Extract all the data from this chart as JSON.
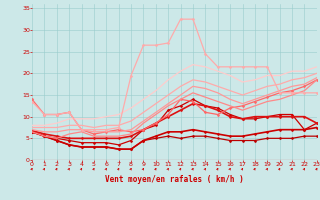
{
  "xlabel": "Vent moyen/en rafales ( km/h )",
  "bg_color": "#cce8e8",
  "grid_color": "#99cccc",
  "x_ticks": [
    0,
    1,
    2,
    3,
    4,
    5,
    6,
    7,
    8,
    9,
    10,
    11,
    12,
    13,
    14,
    15,
    16,
    17,
    18,
    19,
    20,
    21,
    22,
    23
  ],
  "y_ticks": [
    0,
    5,
    10,
    15,
    20,
    25,
    30,
    35
  ],
  "xlim": [
    0,
    23
  ],
  "ylim": [
    0,
    36
  ],
  "lines": [
    {
      "y": [
        6.5,
        5.5,
        4.5,
        3.5,
        3.0,
        3.0,
        3.0,
        2.5,
        2.5,
        4.5,
        5.0,
        5.5,
        5.0,
        5.5,
        5.5,
        5.0,
        4.5,
        4.5,
        4.5,
        5.0,
        5.0,
        5.0,
        5.5,
        5.5
      ],
      "color": "#bb0000",
      "lw": 0.9,
      "marker": "D",
      "ms": 1.5
    },
    {
      "y": [
        6.5,
        5.5,
        4.5,
        3.5,
        3.0,
        3.0,
        3.0,
        2.5,
        2.5,
        4.5,
        5.5,
        6.5,
        6.5,
        7.0,
        6.5,
        6.0,
        5.5,
        5.5,
        6.0,
        6.5,
        7.0,
        7.0,
        7.0,
        7.5
      ],
      "color": "#cc0000",
      "lw": 1.2,
      "marker": "D",
      "ms": 1.5
    },
    {
      "y": [
        6.5,
        5.5,
        5.0,
        4.5,
        4.0,
        4.0,
        4.0,
        3.5,
        4.5,
        7.0,
        8.0,
        11.5,
        12.5,
        14.0,
        12.5,
        12.0,
        10.5,
        9.5,
        9.5,
        10.0,
        10.5,
        10.5,
        7.0,
        8.5
      ],
      "color": "#cc0000",
      "lw": 0.9,
      "marker": "D",
      "ms": 1.5
    },
    {
      "y": [
        6.8,
        6.0,
        5.5,
        5.0,
        5.0,
        5.0,
        5.0,
        5.0,
        5.5,
        7.0,
        8.5,
        10.0,
        11.5,
        13.0,
        12.5,
        11.5,
        10.0,
        9.5,
        10.0,
        10.0,
        10.0,
        10.0,
        10.0,
        8.5
      ],
      "color": "#dd1111",
      "lw": 1.2,
      "marker": "D",
      "ms": 1.5
    },
    {
      "y": [
        14.0,
        10.5,
        10.5,
        11.0,
        7.0,
        6.0,
        6.5,
        7.0,
        6.5,
        7.0,
        8.5,
        10.5,
        14.0,
        13.5,
        11.0,
        10.5,
        12.0,
        12.5,
        13.5,
        14.5,
        15.5,
        16.0,
        17.0,
        18.5
      ],
      "color": "#ff6666",
      "lw": 0.9,
      "marker": "D",
      "ms": 1.5
    },
    {
      "y": [
        6.5,
        5.5,
        5.0,
        6.0,
        6.5,
        5.5,
        5.5,
        5.5,
        6.0,
        8.5,
        10.5,
        12.5,
        14.0,
        15.5,
        14.5,
        13.5,
        12.5,
        11.5,
        12.5,
        13.5,
        14.0,
        15.0,
        16.0,
        18.5
      ],
      "color": "#ff8888",
      "lw": 0.9,
      "marker": null,
      "ms": 0
    },
    {
      "y": [
        7.0,
        6.5,
        6.5,
        7.0,
        7.0,
        6.5,
        6.5,
        6.5,
        7.0,
        9.0,
        11.0,
        13.0,
        15.0,
        17.0,
        16.5,
        15.5,
        14.0,
        13.0,
        14.0,
        15.0,
        16.0,
        17.0,
        17.5,
        19.0
      ],
      "color": "#ff9999",
      "lw": 0.9,
      "marker": null,
      "ms": 0
    },
    {
      "y": [
        7.5,
        7.5,
        7.5,
        8.0,
        8.0,
        7.5,
        8.0,
        8.0,
        9.0,
        11.0,
        13.0,
        15.0,
        17.0,
        18.5,
        18.0,
        17.0,
        16.0,
        15.0,
        16.0,
        17.0,
        17.5,
        18.5,
        19.0,
        20.0
      ],
      "color": "#ffaaaa",
      "lw": 0.9,
      "marker": null,
      "ms": 0
    },
    {
      "y": [
        8.0,
        8.0,
        8.5,
        9.5,
        9.5,
        9.5,
        10.0,
        10.5,
        12.0,
        14.0,
        16.0,
        18.5,
        20.5,
        22.0,
        21.5,
        20.5,
        19.5,
        18.0,
        18.5,
        19.5,
        19.5,
        20.5,
        20.5,
        21.5
      ],
      "color": "#ffcccc",
      "lw": 0.9,
      "marker": null,
      "ms": 0
    },
    {
      "y": [
        13.5,
        10.5,
        10.5,
        11.0,
        7.0,
        7.0,
        7.0,
        7.5,
        19.5,
        26.5,
        26.5,
        27.0,
        32.5,
        32.5,
        24.5,
        21.5,
        21.5,
        21.5,
        21.5,
        21.5,
        15.5,
        15.5,
        15.5,
        15.5
      ],
      "color": "#ffaaaa",
      "lw": 0.9,
      "marker": "D",
      "ms": 1.5
    }
  ]
}
